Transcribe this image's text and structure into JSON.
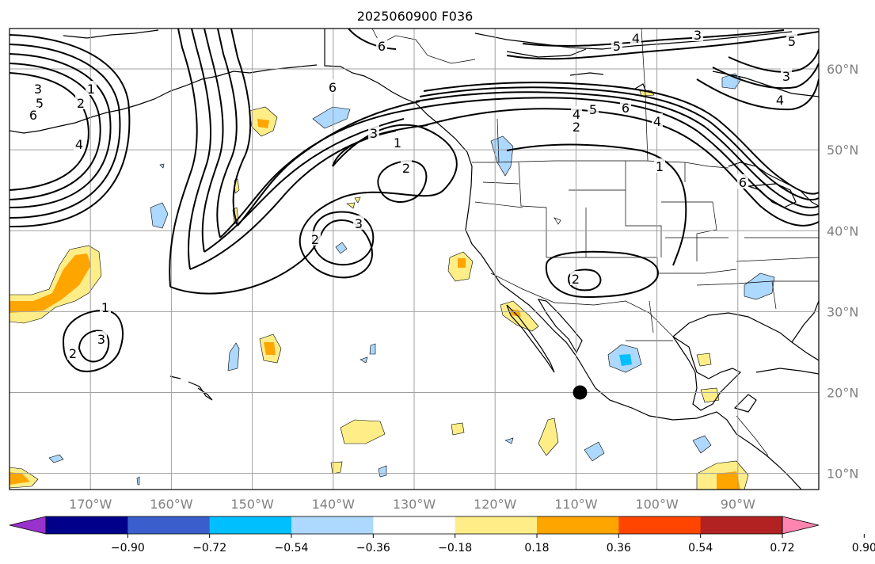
{
  "title": "2025060900 F036",
  "map": {
    "lon_range": [
      -180,
      -80
    ],
    "lat_range": [
      8,
      65
    ],
    "lon_ticks": [
      {
        "value": -170,
        "label": "170°W"
      },
      {
        "value": -160,
        "label": "160°W"
      },
      {
        "value": -150,
        "label": "150°W"
      },
      {
        "value": -140,
        "label": "140°W"
      },
      {
        "value": -130,
        "label": "130°W"
      },
      {
        "value": -120,
        "label": "120°W"
      },
      {
        "value": -110,
        "label": "110°W"
      },
      {
        "value": -100,
        "label": "100°W"
      },
      {
        "value": -90,
        "label": "90°W"
      }
    ],
    "lat_ticks": [
      {
        "value": 10,
        "label": "10°N"
      },
      {
        "value": 20,
        "label": "20°N"
      },
      {
        "value": 30,
        "label": "30°N"
      },
      {
        "value": 40,
        "label": "40°N"
      },
      {
        "value": 50,
        "label": "50°N"
      },
      {
        "value": 60,
        "label": "60°N"
      }
    ],
    "marker": {
      "lon": -109.5,
      "lat": 20
    },
    "contour_labels": [
      "1",
      "2",
      "3",
      "4",
      "5",
      "6"
    ]
  },
  "colorbar": {
    "colors": [
      "#9932cc",
      "#00008b",
      "#3a5fcd",
      "#00bfff",
      "#add8ff",
      "#ffffff",
      "#ffee88",
      "#ffa500",
      "#ff4500",
      "#b22222",
      "#ff85b0"
    ],
    "ticks": [
      "−0.90",
      "−0.72",
      "−0.54",
      "−0.36",
      "−0.18",
      "0.18",
      "0.36",
      "0.54",
      "0.72",
      "0.90"
    ]
  }
}
